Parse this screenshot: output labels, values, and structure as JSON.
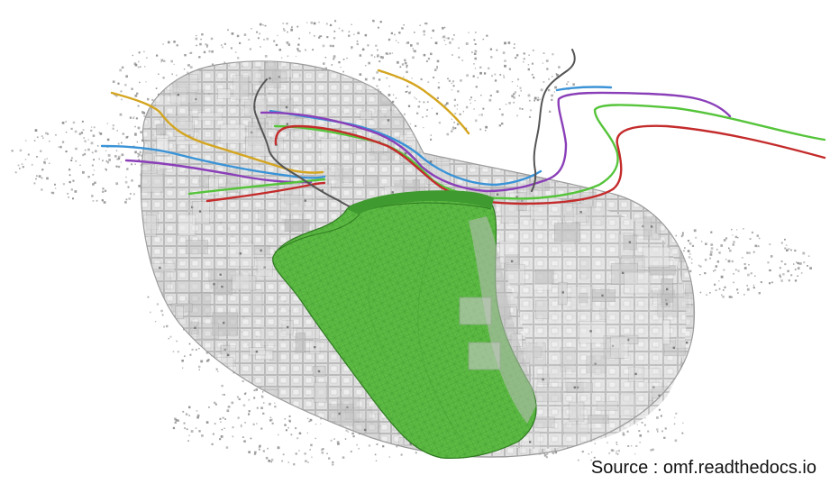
{
  "figure": {
    "caption": "Source : omf.readthedocs.io"
  },
  "elements": {
    "point_cloud": {
      "color": "#8f8f8f"
    },
    "block_model": {
      "fill": "#d4d4d4",
      "edge": "#9b9b9b"
    },
    "ore_surface": {
      "fill": "#5dbb44",
      "mesh": "#3e9a2c",
      "outline": "#2f7a20"
    },
    "horizons": [
      {
        "color": "#d4a51f"
      },
      {
        "color": "#3a93d6"
      },
      {
        "color": "#8a3fb8"
      },
      {
        "color": "#55c43a"
      },
      {
        "color": "#c42b2b"
      }
    ],
    "drillholes": {
      "color": "#555555"
    }
  }
}
